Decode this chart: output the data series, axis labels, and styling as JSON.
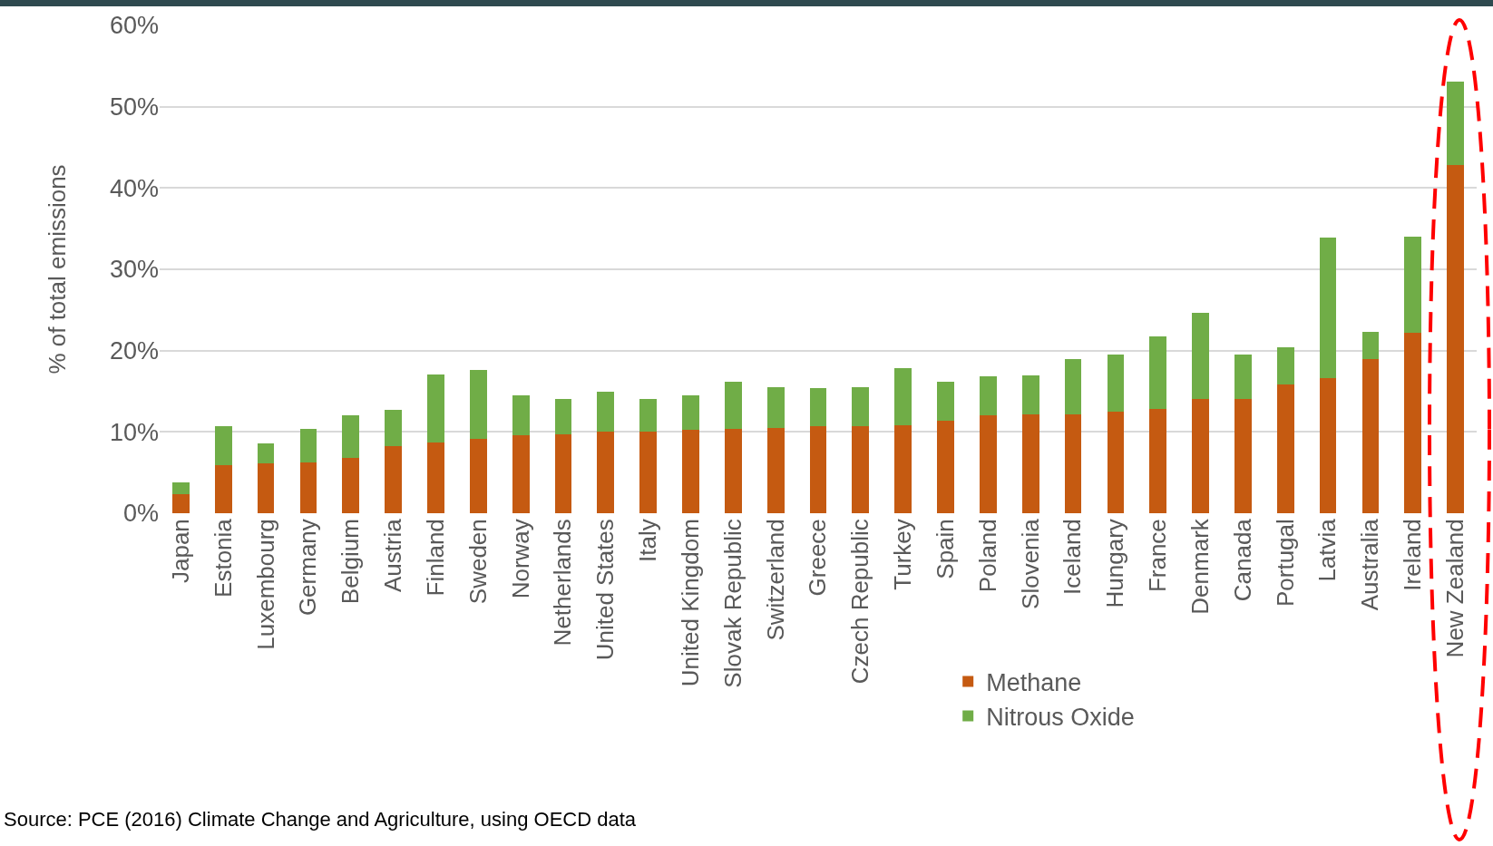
{
  "chart_data": {
    "type": "bar",
    "stacked": true,
    "ylabel": "% of total emissions",
    "categories": [
      "Japan",
      "Estonia",
      "Luxembourg",
      "Germany",
      "Belgium",
      "Austria",
      "Finland",
      "Sweden",
      "Norway",
      "Netherlands",
      "United States",
      "Italy",
      "United Kingdom",
      "Slovak Republic",
      "Switzerland",
      "Greece",
      "Czech Republic",
      "Turkey",
      "Spain",
      "Poland",
      "Slovenia",
      "Iceland",
      "Hungary",
      "France",
      "Denmark",
      "Canada",
      "Portugal",
      "Latvia",
      "Australia",
      "Ireland",
      "New Zealand"
    ],
    "series": [
      {
        "name": "Methane",
        "color": "#c55a11",
        "values": [
          2.3,
          5.9,
          6.1,
          6.2,
          6.8,
          8.3,
          8.7,
          9.1,
          9.6,
          9.7,
          10.0,
          10.0,
          10.3,
          10.4,
          10.5,
          10.7,
          10.7,
          10.8,
          11.4,
          12.0,
          12.2,
          12.2,
          12.5,
          12.8,
          14.0,
          14.1,
          15.8,
          16.6,
          19.0,
          22.2,
          42.8
        ]
      },
      {
        "name": "Nitrous Oxide",
        "color": "#70ad47",
        "values": [
          1.5,
          4.8,
          2.5,
          4.2,
          5.2,
          4.4,
          8.4,
          8.5,
          4.9,
          4.3,
          5.0,
          4.1,
          4.2,
          5.8,
          5.0,
          4.7,
          4.8,
          7.0,
          4.8,
          4.8,
          4.8,
          6.8,
          7.0,
          8.9,
          10.7,
          5.4,
          4.6,
          17.3,
          3.3,
          11.8,
          10.3
        ]
      }
    ],
    "ylim": [
      0,
      60
    ],
    "yticks": [
      {
        "value": 0,
        "label": "0%"
      },
      {
        "value": 10,
        "label": "10%"
      },
      {
        "value": 20,
        "label": "20%"
      },
      {
        "value": 30,
        "label": "30%"
      },
      {
        "value": 40,
        "label": "40%"
      },
      {
        "value": 50,
        "label": "50%"
      },
      {
        "value": 60,
        "label": "60%"
      }
    ],
    "grid": "y",
    "legend": "bottom",
    "annotations": [
      "Source: PCE (2016) Climate Change and Agriculture, using OECD data"
    ]
  }
}
